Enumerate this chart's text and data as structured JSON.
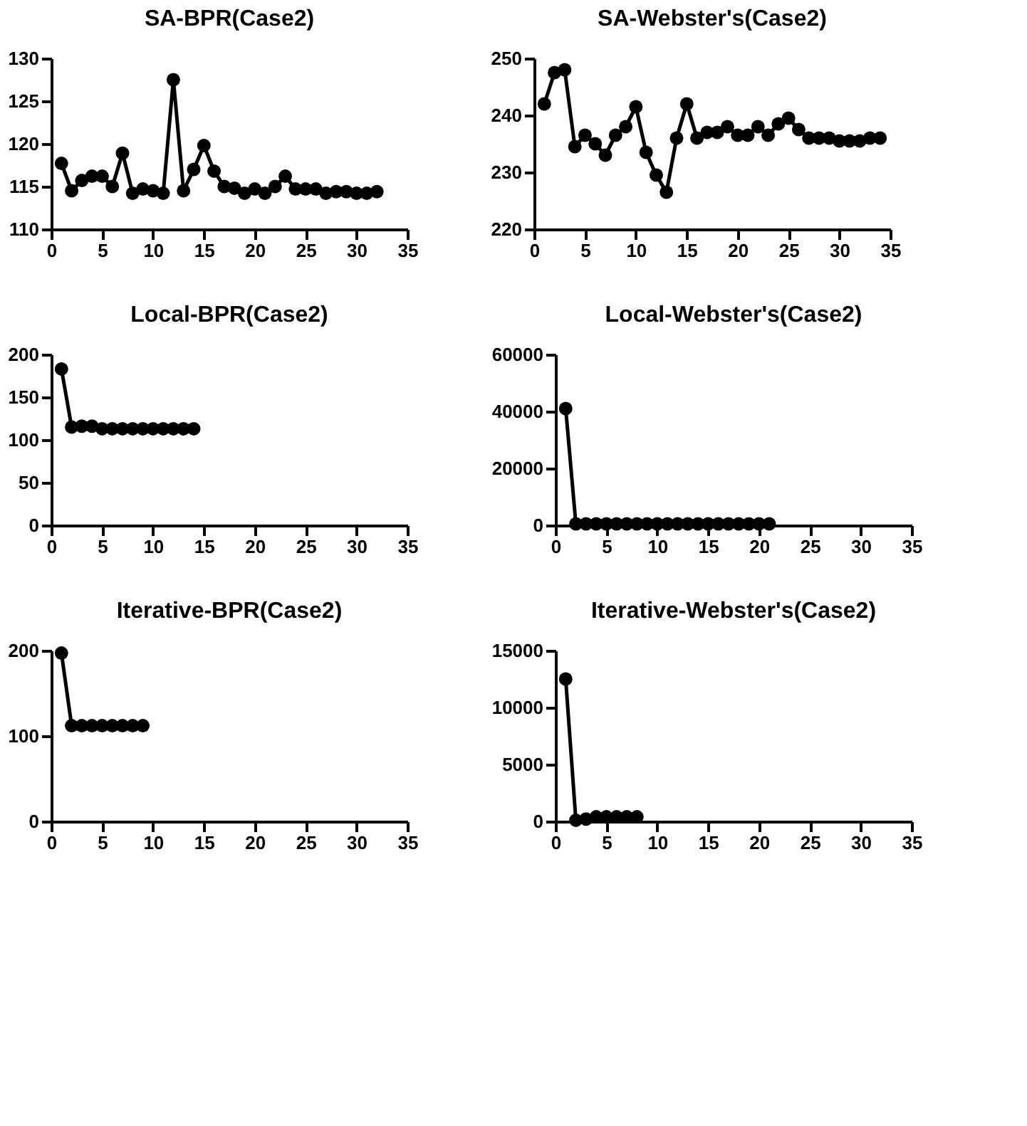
{
  "chart_data": [
    {
      "type": "line",
      "title": "SA-BPR(Case2)",
      "marker": "circle",
      "color": "#000000",
      "grid": false,
      "xlim": [
        0,
        35
      ],
      "xticks": [
        0,
        5,
        10,
        15,
        20,
        25,
        30,
        35
      ],
      "ylim": [
        110,
        130
      ],
      "yticks": [
        110,
        115,
        120,
        125,
        130
      ],
      "x": [
        1,
        2,
        3,
        4,
        5,
        6,
        7,
        8,
        9,
        10,
        11,
        12,
        13,
        14,
        15,
        16,
        17,
        18,
        19,
        20,
        21,
        22,
        23,
        24,
        25,
        26,
        27,
        28,
        29,
        30,
        31,
        32
      ],
      "values": [
        117.7,
        114.5,
        115.7,
        116.2,
        116.2,
        115,
        118.9,
        114.2,
        114.7,
        114.5,
        114.2,
        127.5,
        114.5,
        117,
        119.8,
        116.8,
        115,
        114.8,
        114.2,
        114.7,
        114.2,
        115,
        116.2,
        114.7,
        114.7,
        114.7,
        114.2,
        114.4,
        114.4,
        114.2,
        114.2,
        114.4
      ]
    },
    {
      "type": "line",
      "title": "SA-Webster's(Case2)",
      "marker": "circle",
      "color": "#000000",
      "grid": false,
      "xlim": [
        0,
        35
      ],
      "xticks": [
        0,
        5,
        10,
        15,
        20,
        25,
        30,
        35
      ],
      "ylim": [
        220,
        250
      ],
      "yticks": [
        220,
        230,
        240,
        250
      ],
      "x": [
        1,
        2,
        3,
        4,
        5,
        6,
        7,
        8,
        9,
        10,
        11,
        12,
        13,
        14,
        15,
        16,
        17,
        18,
        19,
        20,
        21,
        22,
        23,
        24,
        25,
        26,
        27,
        28,
        29,
        30,
        31,
        32,
        33,
        34
      ],
      "values": [
        242,
        247.5,
        248,
        234.5,
        236.5,
        235,
        233,
        236.5,
        238,
        241.5,
        233.5,
        229.5,
        226.5,
        236,
        242,
        236,
        237,
        237,
        238,
        236.5,
        236.5,
        238,
        236.5,
        238.5,
        239.5,
        237.5,
        236,
        236,
        236,
        235.5,
        235.5,
        235.5,
        236,
        236
      ]
    },
    {
      "type": "line",
      "title": "Local-BPR(Case2)",
      "marker": "circle",
      "color": "#000000",
      "grid": false,
      "xlim": [
        0,
        35
      ],
      "xticks": [
        0,
        5,
        10,
        15,
        20,
        25,
        30,
        35
      ],
      "ylim": [
        0,
        200
      ],
      "yticks": [
        0,
        50,
        100,
        150,
        200
      ],
      "x": [
        1,
        2,
        3,
        4,
        5,
        6,
        7,
        8,
        9,
        10,
        11,
        12,
        13,
        14
      ],
      "values": [
        183,
        115,
        116,
        116,
        113,
        113,
        113,
        113,
        113,
        113,
        113,
        113,
        113,
        113
      ]
    },
    {
      "type": "line",
      "title": "Local-Webster's(Case2)",
      "marker": "circle",
      "color": "#000000",
      "grid": false,
      "xlim": [
        0,
        35
      ],
      "xticks": [
        0,
        5,
        10,
        15,
        20,
        25,
        30,
        35
      ],
      "ylim": [
        0,
        60000
      ],
      "yticks": [
        0,
        20000,
        40000,
        60000
      ],
      "x": [
        1,
        2,
        3,
        4,
        5,
        6,
        7,
        8,
        9,
        10,
        11,
        12,
        13,
        14,
        15,
        16,
        17,
        18,
        19,
        20,
        21
      ],
      "values": [
        41000,
        500,
        500,
        500,
        500,
        500,
        500,
        500,
        500,
        500,
        500,
        500,
        500,
        500,
        500,
        500,
        500,
        500,
        500,
        500,
        500
      ]
    },
    {
      "type": "line",
      "title": "Iterative-BPR(Case2)",
      "marker": "circle",
      "color": "#000000",
      "grid": false,
      "xlim": [
        0,
        35
      ],
      "xticks": [
        0,
        5,
        10,
        15,
        20,
        25,
        30,
        35
      ],
      "ylim": [
        0,
        200
      ],
      "yticks": [
        0,
        100,
        200
      ],
      "x": [
        1,
        2,
        3,
        4,
        5,
        6,
        7,
        8,
        9
      ],
      "values": [
        197,
        112,
        112,
        112,
        112,
        112,
        112,
        112,
        112
      ]
    },
    {
      "type": "line",
      "title": "Iterative-Webster's(Case2)",
      "marker": "circle",
      "color": "#000000",
      "grid": false,
      "xlim": [
        0,
        35
      ],
      "xticks": [
        0,
        5,
        10,
        15,
        20,
        25,
        30,
        35
      ],
      "ylim": [
        0,
        15000
      ],
      "yticks": [
        0,
        5000,
        10000,
        15000
      ],
      "x": [
        1,
        2,
        3,
        4,
        5,
        6,
        7,
        8
      ],
      "values": [
        12500,
        100,
        200,
        400,
        400,
        400,
        400,
        400
      ]
    }
  ]
}
